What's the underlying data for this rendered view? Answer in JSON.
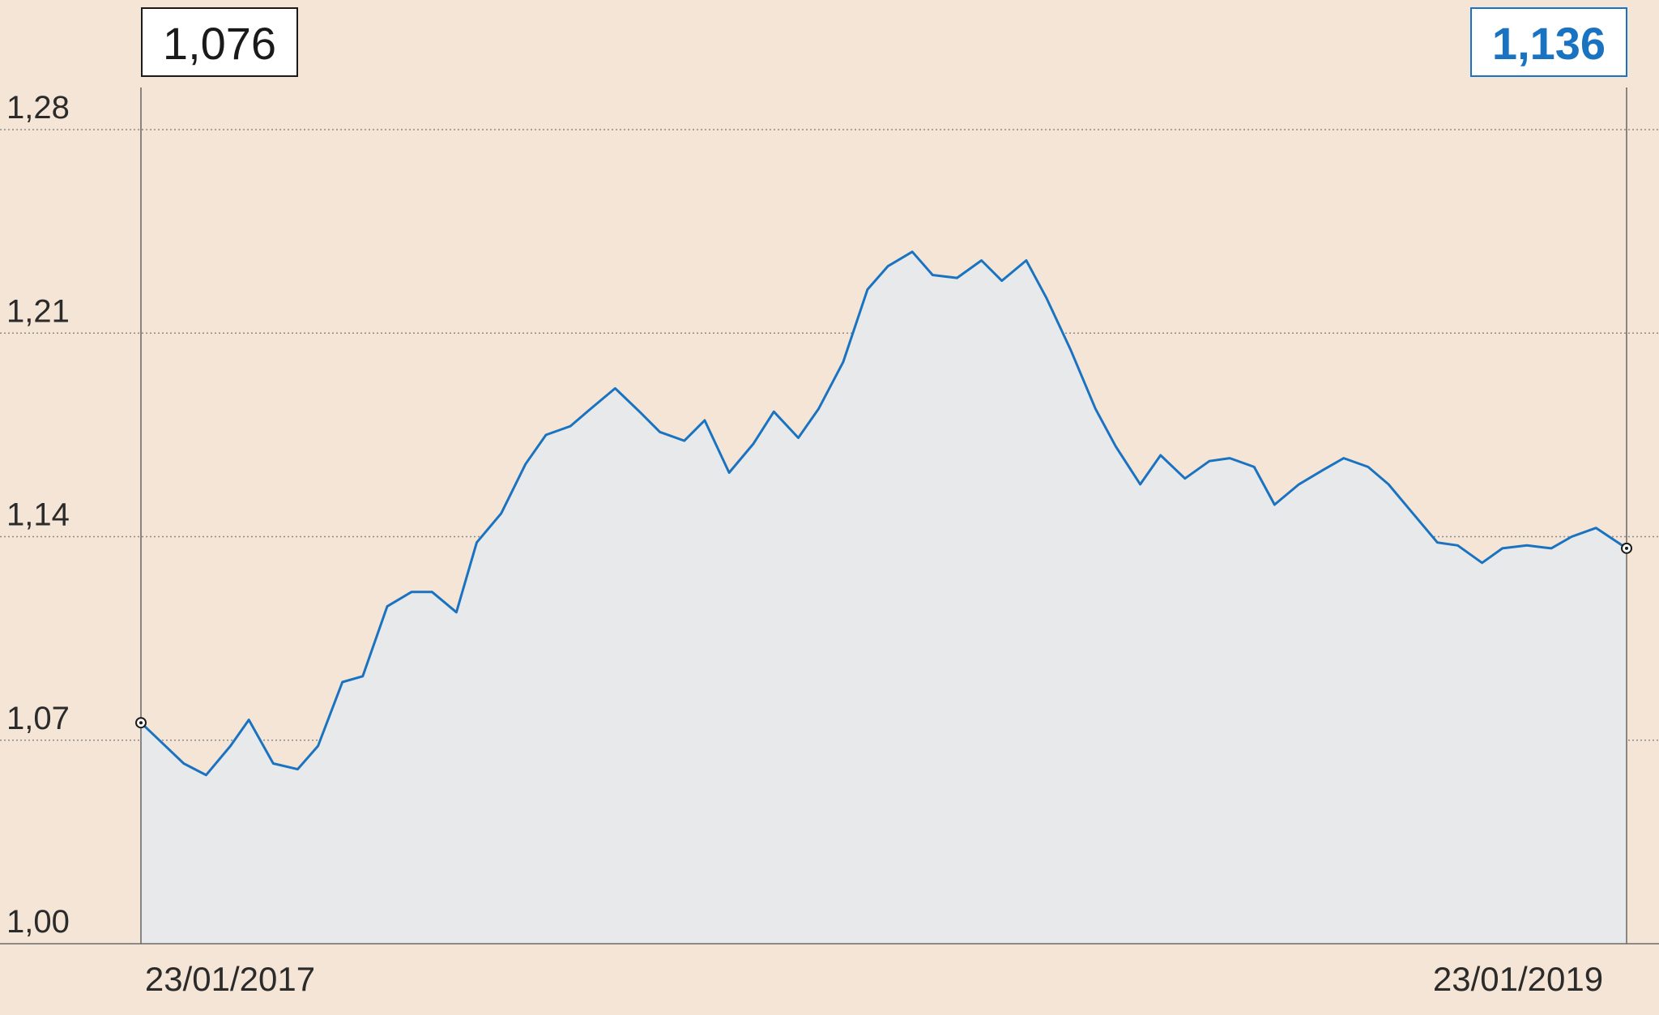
{
  "chart_data": {
    "type": "area",
    "title": "",
    "xlabel": "",
    "ylabel": "",
    "ylim": [
      1.0,
      1.28
    ],
    "yticks": [
      1.0,
      1.07,
      1.14,
      1.21,
      1.28
    ],
    "ytick_labels": [
      "1,00",
      "1,07",
      "1,14",
      "1,21",
      "1,28"
    ],
    "grid": "horizontal dotted",
    "x_labels": {
      "start": "23/01/2017",
      "end": "23/01/2019"
    },
    "start_value_label": "1,076",
    "end_value_label": "1,136",
    "colors": {
      "line": "#1a73c1",
      "area": "#e8e9eb",
      "background": "#f5e5d6",
      "grid": "#8c8c8c",
      "start_box_border": "#1a1a1a",
      "end_box_border": "#1a73c1"
    },
    "series": [
      {
        "x": [
          "2017-01-23",
          "2017-02-01",
          "2017-02-13",
          "2017-02-24",
          "2017-03-08",
          "2017-03-17",
          "2017-03-29",
          "2017-04-10",
          "2017-04-20",
          "2017-05-02",
          "2017-05-12",
          "2017-05-24",
          "2017-06-05",
          "2017-06-15",
          "2017-06-27",
          "2017-07-07",
          "2017-07-19",
          "2017-07-31",
          "2017-08-10",
          "2017-08-22",
          "2017-09-01",
          "2017-09-13",
          "2017-09-25",
          "2017-10-05",
          "2017-10-17",
          "2017-10-27",
          "2017-11-08",
          "2017-11-20",
          "2017-11-30",
          "2017-12-12",
          "2017-12-22",
          "2018-01-03",
          "2018-01-15",
          "2018-01-25",
          "2018-02-06",
          "2018-02-16",
          "2018-02-28",
          "2018-03-12",
          "2018-03-22",
          "2018-04-03",
          "2018-04-13",
          "2018-04-25",
          "2018-05-07",
          "2018-05-17",
          "2018-05-29",
          "2018-06-08",
          "2018-06-20",
          "2018-07-02",
          "2018-07-12",
          "2018-07-24",
          "2018-08-03",
          "2018-08-15",
          "2018-08-27",
          "2018-09-06",
          "2018-09-18",
          "2018-09-28",
          "2018-10-10",
          "2018-10-22",
          "2018-11-01",
          "2018-11-13",
          "2018-11-23",
          "2018-12-05",
          "2018-12-17",
          "2018-12-27",
          "2019-01-08",
          "2019-01-23"
        ],
        "values": [
          1.076,
          1.07,
          1.062,
          1.058,
          1.068,
          1.077,
          1.062,
          1.06,
          1.068,
          1.09,
          1.092,
          1.116,
          1.121,
          1.121,
          1.114,
          1.138,
          1.148,
          1.165,
          1.175,
          1.178,
          1.184,
          1.191,
          1.183,
          1.176,
          1.173,
          1.18,
          1.162,
          1.172,
          1.183,
          1.174,
          1.184,
          1.2,
          1.225,
          1.233,
          1.238,
          1.23,
          1.229,
          1.235,
          1.228,
          1.235,
          1.222,
          1.204,
          1.184,
          1.171,
          1.158,
          1.168,
          1.16,
          1.166,
          1.167,
          1.164,
          1.151,
          1.158,
          1.163,
          1.167,
          1.164,
          1.158,
          1.148,
          1.138,
          1.137,
          1.131,
          1.136,
          1.137,
          1.136,
          1.14,
          1.143,
          1.136
        ]
      }
    ]
  }
}
